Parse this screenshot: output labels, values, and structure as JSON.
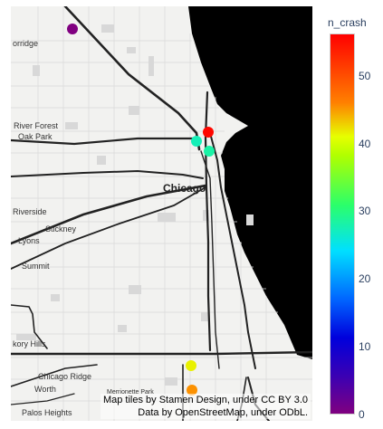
{
  "map": {
    "places": [
      "orridge",
      "River Forest",
      "Oak Park",
      "Chicago",
      "Riverside",
      "Stickney",
      "Lyons",
      "Summit",
      "kory Hills",
      "Chicago Ridge",
      "Worth",
      "Merrionette Park",
      "Palos Heights"
    ],
    "attribution_line1": "Map tiles by Stamen Design, under CC BY 3.0",
    "attribution_line2": "Data by OpenStreetMap, under ODbL."
  },
  "colorbar": {
    "title": "n_crash",
    "ticks": [
      "50",
      "40",
      "30",
      "20",
      "10",
      "0"
    ],
    "range": [
      0,
      55.5
    ],
    "colorscale": [
      "#800080",
      "#0000dc",
      "#00e0ff",
      "#2bff6a",
      "#e6ff00",
      "#ff8000",
      "#ff0000"
    ]
  },
  "chart_data": {
    "type": "scatter",
    "points": [
      {
        "n_crash": 0
      },
      {
        "n_crash": 55
      },
      {
        "n_crash": 23
      },
      {
        "n_crash": 24
      },
      {
        "n_crash": 45
      },
      {
        "n_crash": 38
      }
    ]
  }
}
